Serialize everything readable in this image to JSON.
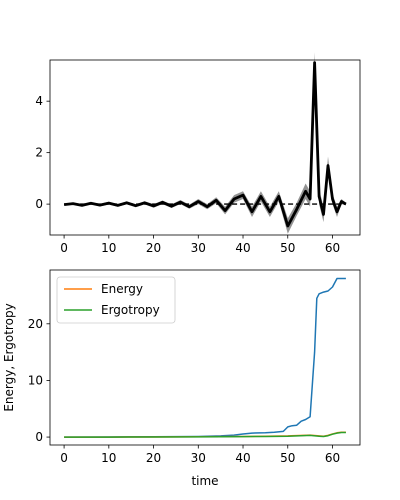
{
  "chart_data": [
    {
      "type": "line",
      "xlim": [
        -3.15,
        66.15
      ],
      "ylim": [
        -1.2,
        5.6
      ],
      "xticks": [
        0,
        10,
        20,
        30,
        40,
        50,
        60
      ],
      "yticks": [
        0,
        2,
        4
      ],
      "xlabel": "",
      "ylabel": "",
      "grid": false,
      "series": [
        {
          "color": "#000000",
          "style": "dense oscillation band",
          "x": [
            0,
            2,
            4,
            6,
            8,
            10,
            12,
            14,
            16,
            18,
            20,
            22,
            24,
            26,
            28,
            30,
            32,
            34,
            36,
            38,
            40,
            42,
            44,
            46,
            48,
            50,
            52,
            54,
            55,
            56,
            57,
            58,
            59,
            60,
            61,
            62,
            63
          ],
          "y": [
            -0.02,
            0.02,
            -0.05,
            0.03,
            -0.04,
            0.04,
            -0.05,
            0.05,
            -0.06,
            0.05,
            -0.07,
            0.07,
            -0.08,
            0.08,
            -0.1,
            0.1,
            -0.1,
            0.15,
            -0.25,
            0.2,
            0.35,
            -0.3,
            0.3,
            -0.3,
            0.3,
            -0.85,
            -0.2,
            0.5,
            0.2,
            5.5,
            0.3,
            -0.4,
            1.5,
            0.2,
            -0.3,
            0.1,
            0.0
          ],
          "band": [
            0.02,
            0.03,
            0.04,
            0.04,
            0.05,
            0.05,
            0.05,
            0.06,
            0.06,
            0.06,
            0.07,
            0.07,
            0.07,
            0.08,
            0.08,
            0.1,
            0.1,
            0.12,
            0.15,
            0.15,
            0.15,
            0.2,
            0.2,
            0.2,
            0.2,
            0.3,
            0.25,
            0.3,
            0.3,
            0.4,
            0.3,
            0.3,
            0.35,
            0.2,
            0.2,
            0.1,
            0.05
          ]
        },
        {
          "color": "#000000",
          "style": "dashed baseline",
          "x": [
            0,
            63
          ],
          "y": [
            0,
            0
          ]
        }
      ]
    },
    {
      "type": "line",
      "xlim": [
        -3.15,
        66.15
      ],
      "ylim": [
        -1.4,
        29.5
      ],
      "xticks": [
        0,
        10,
        20,
        30,
        40,
        50,
        60
      ],
      "yticks": [
        0,
        10,
        20
      ],
      "xlabel": "time",
      "ylabel": "Energy, Ergotropy",
      "grid": false,
      "legend": "upper-left",
      "series": [
        {
          "color": "#1f77b4",
          "x": [
            0,
            10,
            20,
            30,
            35,
            38,
            40,
            42,
            45,
            47,
            49,
            50,
            51,
            52,
            53,
            54,
            55,
            56,
            56.5,
            57,
            58,
            59,
            60,
            61,
            62,
            63
          ],
          "y": [
            0.0,
            0.02,
            0.05,
            0.1,
            0.2,
            0.35,
            0.55,
            0.7,
            0.75,
            0.85,
            1.0,
            1.8,
            2.0,
            2.1,
            2.8,
            3.1,
            3.6,
            15.0,
            24.5,
            25.3,
            25.6,
            25.8,
            26.5,
            28.0,
            28.0,
            28.0
          ]
        },
        {
          "name": "Energy",
          "color": "#ff7f0e",
          "x": [
            0,
            10,
            20,
            30,
            40,
            45,
            50,
            55,
            57,
            58,
            59,
            60,
            61,
            62,
            63
          ],
          "y": [
            0.0,
            0.0,
            0.02,
            0.05,
            0.1,
            0.15,
            0.2,
            0.35,
            0.2,
            0.15,
            0.3,
            0.55,
            0.75,
            0.85,
            0.85
          ]
        },
        {
          "name": "Ergotropy",
          "color": "#2ca02c",
          "x": [
            0,
            10,
            20,
            30,
            40,
            45,
            50,
            55,
            57,
            58,
            59,
            60,
            61,
            62,
            63
          ],
          "y": [
            0.0,
            0.0,
            0.01,
            0.03,
            0.08,
            0.1,
            0.15,
            0.3,
            0.15,
            0.1,
            0.25,
            0.5,
            0.7,
            0.8,
            0.8
          ]
        }
      ]
    }
  ]
}
